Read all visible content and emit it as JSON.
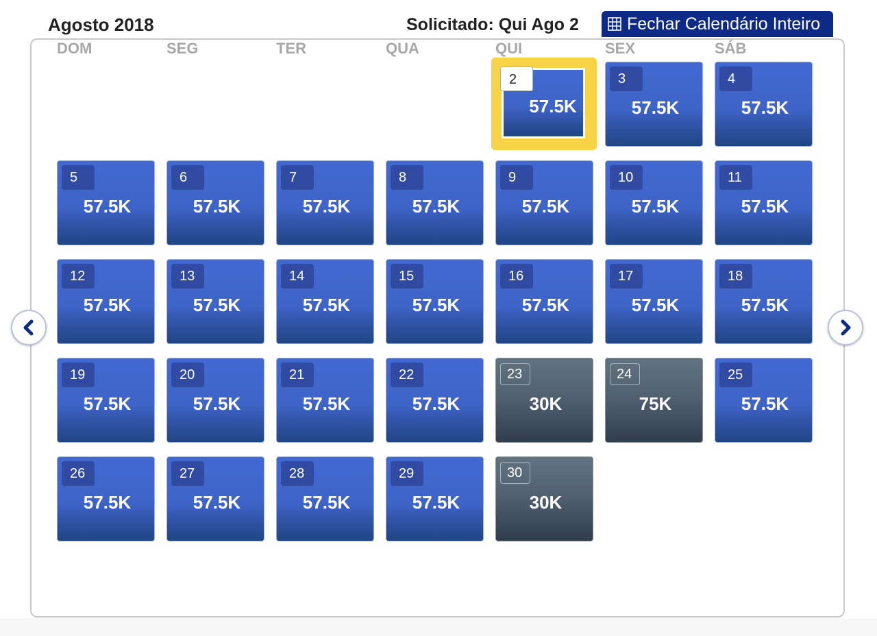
{
  "header": {
    "month_title": "Agosto 2018",
    "requested": "Solicitado: Qui Ago 2",
    "close_button": "Fechar Calendário Inteiro"
  },
  "weekdays": [
    "DOM",
    "SEG",
    "TER",
    "QUA",
    "QUI",
    "SEX",
    "SÁB"
  ],
  "days": [
    {
      "day": "2",
      "price": "57.5K",
      "status": "selected"
    },
    {
      "day": "3",
      "price": "57.5K",
      "status": "available"
    },
    {
      "day": "4",
      "price": "57.5K",
      "status": "available"
    },
    {
      "day": "5",
      "price": "57.5K",
      "status": "available"
    },
    {
      "day": "6",
      "price": "57.5K",
      "status": "available"
    },
    {
      "day": "7",
      "price": "57.5K",
      "status": "available"
    },
    {
      "day": "8",
      "price": "57.5K",
      "status": "available"
    },
    {
      "day": "9",
      "price": "57.5K",
      "status": "available"
    },
    {
      "day": "10",
      "price": "57.5K",
      "status": "available"
    },
    {
      "day": "11",
      "price": "57.5K",
      "status": "available"
    },
    {
      "day": "12",
      "price": "57.5K",
      "status": "available"
    },
    {
      "day": "13",
      "price": "57.5K",
      "status": "available"
    },
    {
      "day": "14",
      "price": "57.5K",
      "status": "available"
    },
    {
      "day": "15",
      "price": "57.5K",
      "status": "available"
    },
    {
      "day": "16",
      "price": "57.5K",
      "status": "available"
    },
    {
      "day": "17",
      "price": "57.5K",
      "status": "available"
    },
    {
      "day": "18",
      "price": "57.5K",
      "status": "available"
    },
    {
      "day": "19",
      "price": "57.5K",
      "status": "available"
    },
    {
      "day": "20",
      "price": "57.5K",
      "status": "available"
    },
    {
      "day": "21",
      "price": "57.5K",
      "status": "available"
    },
    {
      "day": "22",
      "price": "57.5K",
      "status": "available"
    },
    {
      "day": "23",
      "price": "30K",
      "status": "other"
    },
    {
      "day": "24",
      "price": "75K",
      "status": "other"
    },
    {
      "day": "25",
      "price": "57.5K",
      "status": "available"
    },
    {
      "day": "26",
      "price": "57.5K",
      "status": "available"
    },
    {
      "day": "27",
      "price": "57.5K",
      "status": "available"
    },
    {
      "day": "28",
      "price": "57.5K",
      "status": "available"
    },
    {
      "day": "29",
      "price": "57.5K",
      "status": "available"
    },
    {
      "day": "30",
      "price": "30K",
      "status": "other"
    }
  ],
  "icons": {
    "close_button": "grid-icon",
    "prev": "chevron-left-icon",
    "next": "chevron-right-icon"
  },
  "colors": {
    "available": "#3e64c8",
    "other": "#4d5d6c",
    "selected_border": "#f8d346",
    "close_button_bg": "#0c2a86",
    "weekday_text": "#a7a7a7"
  }
}
